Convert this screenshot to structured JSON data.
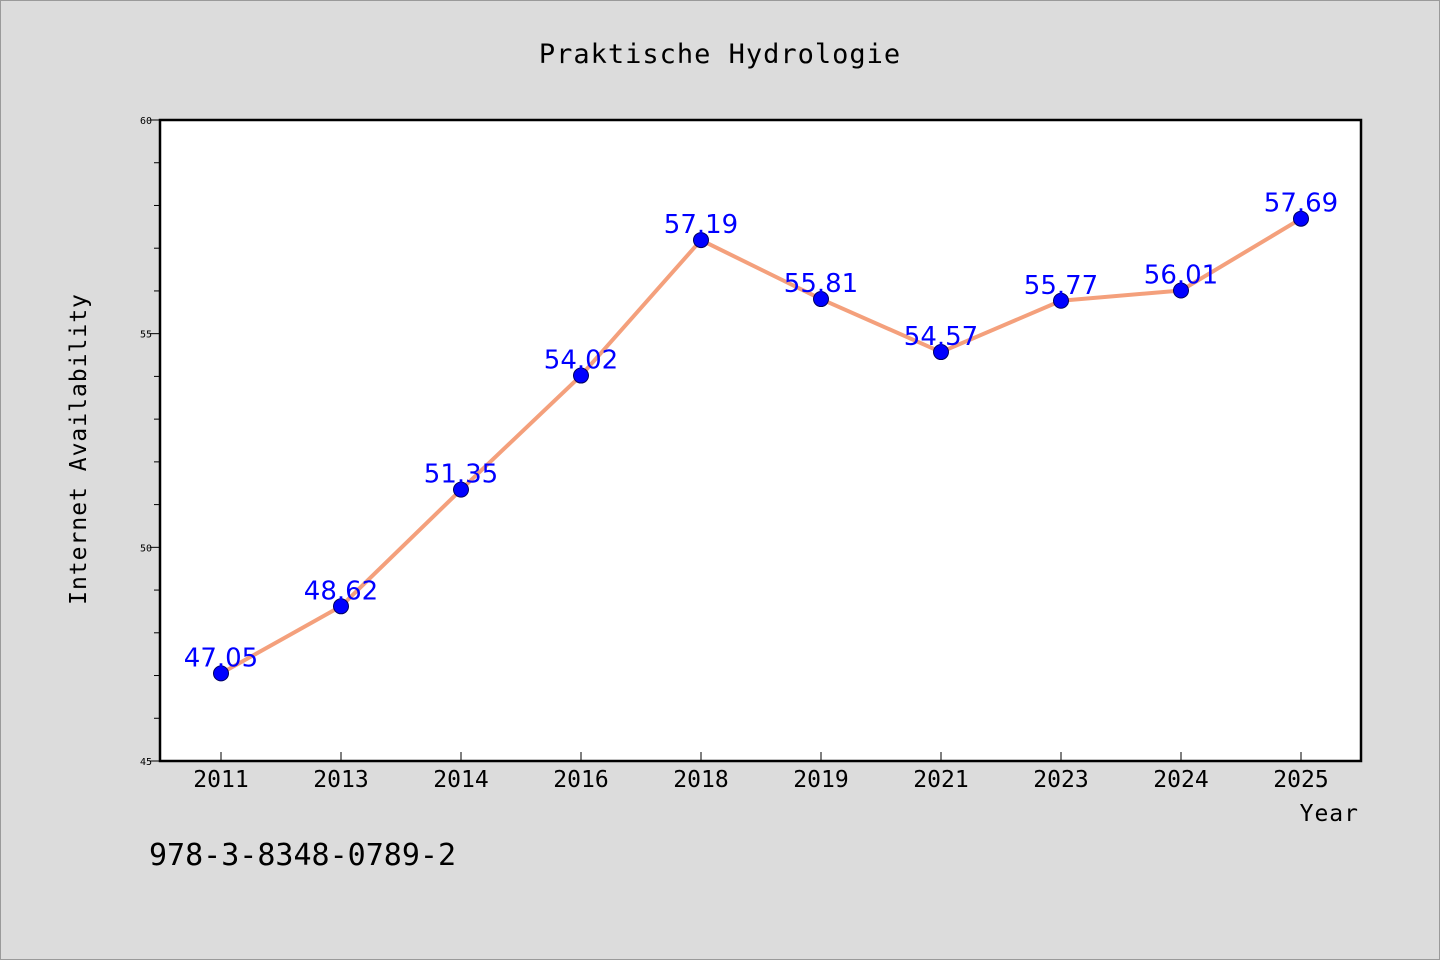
{
  "chart_data": {
    "type": "line",
    "title": "Praktische Hydrologie",
    "xlabel": "Year",
    "ylabel": "Internet Availability",
    "categories": [
      "2011",
      "2013",
      "2014",
      "2016",
      "2018",
      "2019",
      "2021",
      "2023",
      "2024",
      "2025"
    ],
    "series": [
      {
        "values": [
          47.05,
          48.62,
          51.35,
          54.02,
          57.19,
          55.81,
          54.57,
          55.77,
          56.01,
          57.69
        ],
        "labels": [
          "47.05",
          "48.62",
          "51.35",
          "54.02",
          "57.19",
          "55.81",
          "54.57",
          "55.77",
          "56.01",
          "57.69"
        ],
        "line_color": "#f4a07c",
        "marker_color": "#0000ff"
      }
    ],
    "ylim": [
      45,
      60
    ],
    "y_ticks": [
      45,
      50,
      55,
      60
    ],
    "y_tick_labels": [
      "45",
      "50",
      "55",
      "60"
    ],
    "y_minor_step": 1,
    "grid": false,
    "legend": "none"
  },
  "footer": {
    "isbn": "978-3-8348-0789-2"
  },
  "colors": {
    "background": "#dcdcdc",
    "plot_background": "#ffffff",
    "axis": "#000000",
    "label_text": "#0000ff"
  }
}
